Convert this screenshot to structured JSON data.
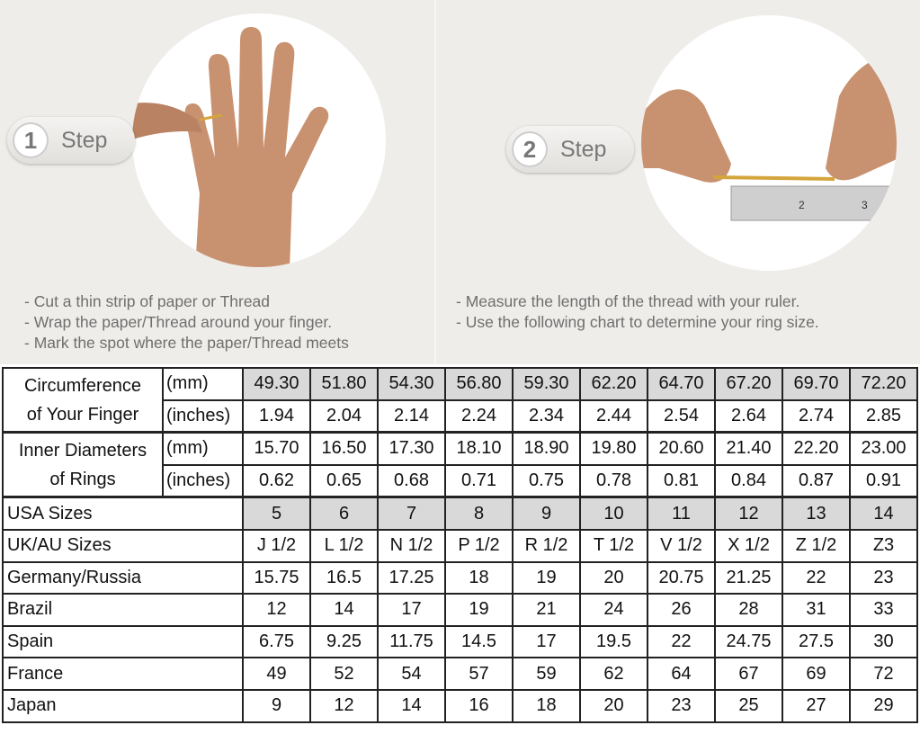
{
  "step1": {
    "number": "1",
    "label": "Step",
    "instructions": [
      "Cut a thin strip of paper or Thread",
      "Wrap the paper/Thread around your finger.",
      "Mark the spot where the paper/Thread meets"
    ]
  },
  "step2": {
    "number": "2",
    "label": "Step",
    "instructions": [
      "Measure the length of the thread with your ruler.",
      "Use the following chart to determine your ring size."
    ]
  },
  "table": {
    "circumference": {
      "label_line1": "Circumference",
      "label_line2": "of Your Finger",
      "mm_unit": "(mm)",
      "mm": [
        "49.30",
        "51.80",
        "54.30",
        "56.80",
        "59.30",
        "62.20",
        "64.70",
        "67.20",
        "69.70",
        "72.20"
      ],
      "inches_unit": "(inches)",
      "inches": [
        "1.94",
        "2.04",
        "2.14",
        "2.24",
        "2.34",
        "2.44",
        "2.54",
        "2.64",
        "2.74",
        "2.85"
      ]
    },
    "inner_diameter": {
      "label_line1": "Inner Diameters",
      "label_line2": "of Rings",
      "mm_unit": "(mm)",
      "mm": [
        "15.70",
        "16.50",
        "17.30",
        "18.10",
        "18.90",
        "19.80",
        "20.60",
        "21.40",
        "22.20",
        "23.00"
      ],
      "inches_unit": "(inches)",
      "inches": [
        "0.62",
        "0.65",
        "0.68",
        "0.71",
        "0.75",
        "0.78",
        "0.81",
        "0.84",
        "0.87",
        "0.91"
      ]
    },
    "rows": [
      {
        "label": "USA Sizes",
        "values": [
          "5",
          "6",
          "7",
          "8",
          "9",
          "10",
          "11",
          "12",
          "13",
          "14"
        ]
      },
      {
        "label": "UK/AU Sizes",
        "values": [
          "J 1/2",
          "L 1/2",
          "N 1/2",
          "P 1/2",
          "R 1/2",
          "T 1/2",
          "V 1/2",
          "X 1/2",
          "Z 1/2",
          "Z3"
        ]
      },
      {
        "label": "Germany/Russia",
        "values": [
          "15.75",
          "16.5",
          "17.25",
          "18",
          "19",
          "20",
          "20.75",
          "21.25",
          "22",
          "23"
        ]
      },
      {
        "label": "Brazil",
        "values": [
          "12",
          "14",
          "17",
          "19",
          "21",
          "24",
          "26",
          "28",
          "31",
          "33"
        ]
      },
      {
        "label": "Spain",
        "values": [
          "6.75",
          "9.25",
          "11.75",
          "14.5",
          "17",
          "19.5",
          "22",
          "24.75",
          "27.5",
          "30"
        ]
      },
      {
        "label": "France",
        "values": [
          "49",
          "52",
          "54",
          "57",
          "59",
          "62",
          "64",
          "67",
          "69",
          "72"
        ]
      },
      {
        "label": "Japan",
        "values": [
          "9",
          "12",
          "14",
          "16",
          "18",
          "20",
          "23",
          "25",
          "27",
          "29"
        ]
      }
    ]
  },
  "colors": {
    "highlight_cell": "#d9d9d9",
    "background": "#efedea",
    "text_gray": "#6f6f6f"
  }
}
